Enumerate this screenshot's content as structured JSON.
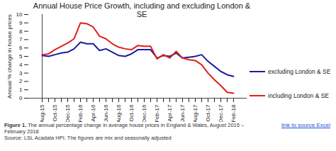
{
  "chart_data": {
    "type": "line",
    "title": "Annual House Price Growth, including and excluding London & SE",
    "y_label": "Annual % change in house prices",
    "caption_figure": "Figure 1.",
    "caption": "The annual  percentage change in average house prices in England & Wales, August 2015 – February 2018",
    "source": "Source: LSL Acadata HPI. The figures are mix and seasonally adjusted",
    "link_text": "link to source Excel",
    "categories": [
      "Aug-15",
      null,
      "Oct-15",
      null,
      "Dec-15",
      null,
      "Feb-16",
      null,
      "Apr-16",
      null,
      "Jun-16",
      null,
      "Aug-16",
      null,
      "Oct-16",
      null,
      "Dec-16",
      null,
      "Feb-17",
      null,
      "Apr-17",
      null,
      "Jun-17",
      null,
      "Aug-17",
      null,
      "Oct-17",
      null,
      "Dec-17",
      null,
      "Feb-18"
    ],
    "series": [
      {
        "name": "excluding London & SE",
        "color": "#1c1c9e",
        "values": [
          5.1,
          5.0,
          5.2,
          5.4,
          5.5,
          5.9,
          6.7,
          6.5,
          6.5,
          5.7,
          5.9,
          5.5,
          5.1,
          5.0,
          5.3,
          5.8,
          5.8,
          5.8,
          4.8,
          5.1,
          5.0,
          5.4,
          4.8,
          4.9,
          5.0,
          5.2,
          4.4,
          3.8,
          3.2,
          2.8,
          2.6
        ]
      },
      {
        "name": "including London & SE",
        "color": "#e0201b",
        "values": [
          5.2,
          5.3,
          5.8,
          6.2,
          6.6,
          7.1,
          9.0,
          8.9,
          8.5,
          7.4,
          7.1,
          6.5,
          6.1,
          5.9,
          5.8,
          6.3,
          6.2,
          6.2,
          4.7,
          5.2,
          4.8,
          5.6,
          4.8,
          4.6,
          4.5,
          4.0,
          3.0,
          2.2,
          1.5,
          0.7,
          0.6
        ]
      }
    ],
    "ylim": [
      0,
      10
    ],
    "yticks": [
      0,
      1,
      2,
      3,
      4,
      5,
      6,
      7,
      8,
      9,
      10
    ],
    "grid": false,
    "legend": "right"
  }
}
